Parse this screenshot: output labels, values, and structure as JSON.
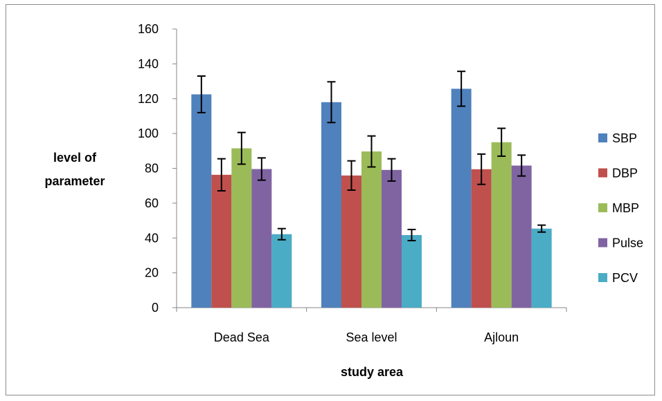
{
  "chart_data": {
    "type": "bar",
    "categories": [
      "Dead Sea",
      "Sea level",
      "Ajloun"
    ],
    "series": [
      {
        "name": "SBP",
        "color": "#4F81BD",
        "values": [
          122.5,
          118.0,
          125.7
        ],
        "errors": [
          10.5,
          11.7,
          10.0
        ]
      },
      {
        "name": "DBP",
        "color": "#C0504D",
        "values": [
          76.3,
          75.9,
          79.5
        ],
        "errors": [
          9.2,
          8.4,
          8.7
        ]
      },
      {
        "name": "MBP",
        "color": "#9BBB59",
        "values": [
          91.5,
          89.7,
          95.0
        ],
        "errors": [
          9.1,
          8.9,
          8.0
        ]
      },
      {
        "name": "Pulse",
        "color": "#8064A2",
        "values": [
          79.6,
          79.1,
          81.6
        ],
        "errors": [
          6.4,
          6.4,
          6.0
        ]
      },
      {
        "name": "PCV",
        "color": "#4BACC6",
        "values": [
          42.2,
          41.7,
          45.4
        ],
        "errors": [
          3.2,
          3.2,
          2.0
        ]
      }
    ],
    "ylim": [
      0,
      160
    ],
    "yticks": [
      0,
      20,
      40,
      60,
      80,
      100,
      120,
      140,
      160
    ],
    "xlabel": "study area",
    "ylabel_lines": [
      "level of",
      "parameter"
    ],
    "legend_position": "right",
    "grid": false
  }
}
